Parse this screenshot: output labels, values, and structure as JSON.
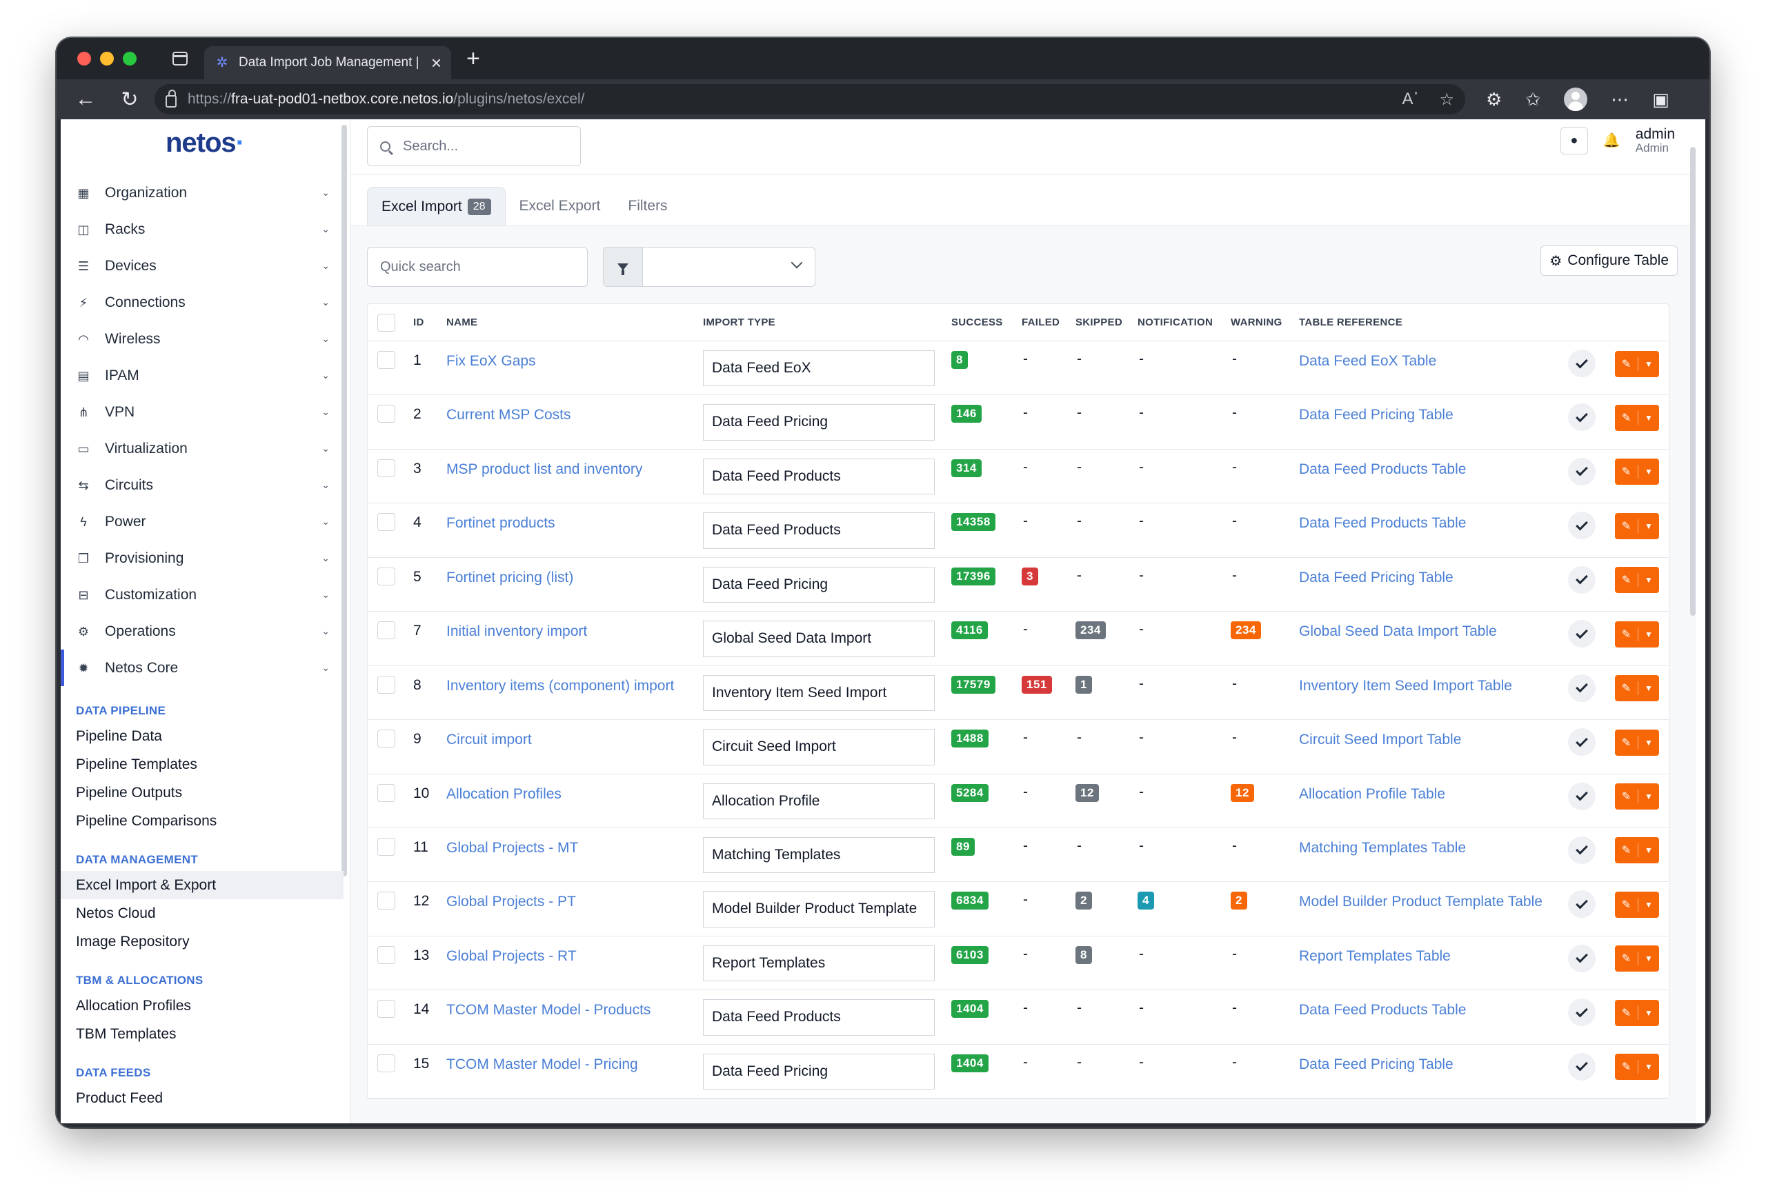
{
  "browser": {
    "tab_title": "Data Import Job Management |",
    "url_prefix": "https://",
    "url_host": "fra-uat-pod01-netbox.core.netos.io",
    "url_path": "/plugins/netos/excel/"
  },
  "sidebar": {
    "logo": "netos",
    "menu": [
      {
        "label": "Organization",
        "icon": "building-icon"
      },
      {
        "label": "Racks",
        "icon": "rack-icon"
      },
      {
        "label": "Devices",
        "icon": "server-icon"
      },
      {
        "label": "Connections",
        "icon": "plug-icon"
      },
      {
        "label": "Wireless",
        "icon": "wifi-icon"
      },
      {
        "label": "IPAM",
        "icon": "ip-icon"
      },
      {
        "label": "VPN",
        "icon": "vpn-icon"
      },
      {
        "label": "Virtualization",
        "icon": "monitor-icon"
      },
      {
        "label": "Circuits",
        "icon": "circuit-icon"
      },
      {
        "label": "Power",
        "icon": "bolt-icon"
      },
      {
        "label": "Provisioning",
        "icon": "document-icon"
      },
      {
        "label": "Customization",
        "icon": "toolbox-icon"
      },
      {
        "label": "Operations",
        "icon": "cogs-icon"
      },
      {
        "label": "Netos Core",
        "icon": "gear-icon"
      }
    ],
    "sections": {
      "pipeline": {
        "title": "DATA PIPELINE",
        "links": [
          "Pipeline Data",
          "Pipeline Templates",
          "Pipeline Outputs",
          "Pipeline Comparisons"
        ]
      },
      "management": {
        "title": "DATA MANAGEMENT",
        "links": [
          "Excel Import & Export",
          "Netos Cloud",
          "Image Repository"
        ]
      },
      "tbm": {
        "title": "TBM & ALLOCATIONS",
        "links": [
          "Allocation Profiles",
          "TBM Templates"
        ]
      },
      "feeds": {
        "title": "DATA FEEDS",
        "links": [
          "Product Feed"
        ]
      }
    }
  },
  "header": {
    "search_placeholder": "Search...",
    "user_name": "admin",
    "user_role": "Admin"
  },
  "tabs": [
    {
      "label": "Excel Import",
      "badge": "28"
    },
    {
      "label": "Excel Export"
    },
    {
      "label": "Filters"
    }
  ],
  "controls": {
    "quick_search_placeholder": "Quick search",
    "configure_label": "Configure Table"
  },
  "table": {
    "columns": [
      "ID",
      "NAME",
      "IMPORT TYPE",
      "SUCCESS",
      "FAILED",
      "SKIPPED",
      "NOTIFICATION",
      "WARNING",
      "TABLE REFERENCE"
    ],
    "rows": [
      {
        "id": "1",
        "name": "Fix EoX Gaps",
        "type": "Data Feed EoX",
        "success": "8",
        "failed": "-",
        "skipped": "-",
        "notification": "-",
        "warning": "-",
        "ref": "Data Feed EoX Table"
      },
      {
        "id": "2",
        "name": "Current MSP Costs",
        "type": "Data Feed Pricing",
        "success": "146",
        "failed": "-",
        "skipped": "-",
        "notification": "-",
        "warning": "-",
        "ref": "Data Feed Pricing Table"
      },
      {
        "id": "3",
        "name": "MSP product list and inventory",
        "type": "Data Feed Products",
        "success": "314",
        "failed": "-",
        "skipped": "-",
        "notification": "-",
        "warning": "-",
        "ref": "Data Feed Products Table"
      },
      {
        "id": "4",
        "name": "Fortinet products",
        "type": "Data Feed Products",
        "success": "14358",
        "failed": "-",
        "skipped": "-",
        "notification": "-",
        "warning": "-",
        "ref": "Data Feed Products Table"
      },
      {
        "id": "5",
        "name": "Fortinet pricing (list)",
        "type": "Data Feed Pricing",
        "success": "17396",
        "failed": "3",
        "skipped": "-",
        "notification": "-",
        "warning": "-",
        "ref": "Data Feed Pricing Table"
      },
      {
        "id": "7",
        "name": "Initial inventory import",
        "type": "Global Seed Data Import",
        "success": "4116",
        "failed": "-",
        "skipped": "234",
        "notification": "-",
        "warning": "234",
        "ref": "Global Seed Data Import Table"
      },
      {
        "id": "8",
        "name": "Inventory items (component) import",
        "type": "Inventory Item Seed Import",
        "success": "17579",
        "failed": "151",
        "skipped": "1",
        "notification": "-",
        "warning": "-",
        "ref": "Inventory Item Seed Import Table"
      },
      {
        "id": "9",
        "name": "Circuit import",
        "type": "Circuit Seed Import",
        "success": "1488",
        "failed": "-",
        "skipped": "-",
        "notification": "-",
        "warning": "-",
        "ref": "Circuit Seed Import Table"
      },
      {
        "id": "10",
        "name": "Allocation Profiles",
        "type": "Allocation Profile",
        "success": "5284",
        "failed": "-",
        "skipped": "12",
        "notification": "-",
        "warning": "12",
        "ref": "Allocation Profile Table"
      },
      {
        "id": "11",
        "name": "Global Projects - MT",
        "type": "Matching Templates",
        "success": "89",
        "failed": "-",
        "skipped": "-",
        "notification": "-",
        "warning": "-",
        "ref": "Matching Templates Table"
      },
      {
        "id": "12",
        "name": "Global Projects - PT",
        "type": "Model Builder Product Template",
        "success": "6834",
        "failed": "-",
        "skipped": "2",
        "notification": "4",
        "warning": "2",
        "ref": "Model Builder Product Template Table"
      },
      {
        "id": "13",
        "name": "Global Projects - RT",
        "type": "Report Templates",
        "success": "6103",
        "failed": "-",
        "skipped": "8",
        "notification": "-",
        "warning": "-",
        "ref": "Report Templates Table"
      },
      {
        "id": "14",
        "name": "TCOM Master Model - Products",
        "type": "Data Feed Products",
        "success": "1404",
        "failed": "-",
        "skipped": "-",
        "notification": "-",
        "warning": "-",
        "ref": "Data Feed Products Table"
      },
      {
        "id": "15",
        "name": "TCOM Master Model - Pricing",
        "type": "Data Feed Pricing",
        "success": "1404",
        "failed": "-",
        "skipped": "-",
        "notification": "-",
        "warning": "-",
        "ref": "Data Feed Pricing Table"
      }
    ]
  },
  "colors": {
    "success": "#22a447",
    "failed": "#d63939",
    "skipped": "#6c757d",
    "notification": "#1b9ab2",
    "warning": "#f76707",
    "link": "#4a7fd6"
  }
}
